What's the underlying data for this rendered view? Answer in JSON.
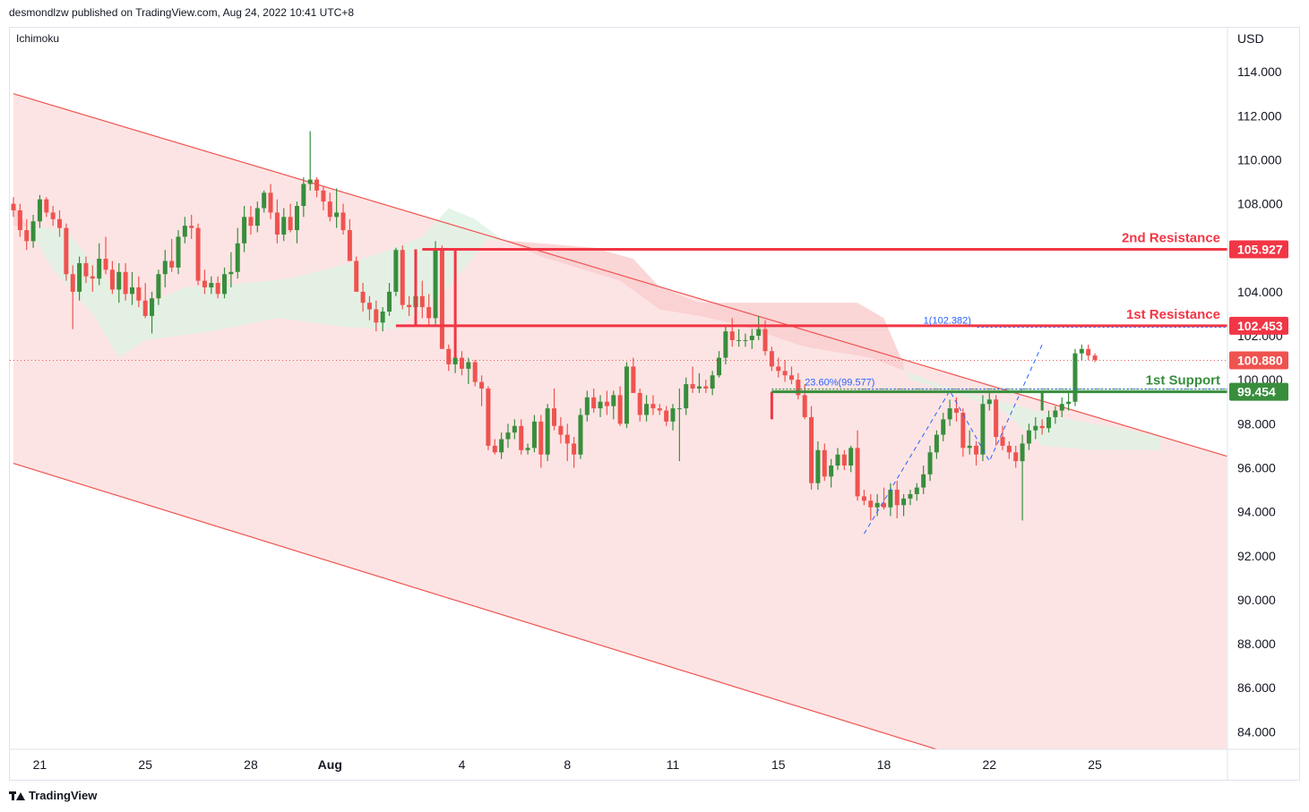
{
  "header": {
    "published_by": "desmondlzw published on TradingView.com, Aug 24, 2022 10:41 UTC+8",
    "indicator": "Ichimoku",
    "currency": "USD",
    "footer_brand": "TradingView"
  },
  "colors": {
    "bull": "#388e3c",
    "bear": "#ef5350",
    "resistance": "#f23645",
    "support": "#388e3c",
    "channel_fill": "#fde1e1",
    "cloud_red": "#f9cfd0",
    "cloud_green": "#e0f2e4",
    "fib": "#2962ff"
  },
  "chart_data": {
    "type": "candlestick",
    "ylim": [
      83.2,
      116.0
    ],
    "y_ticks": [
      84,
      86,
      88,
      90,
      92,
      94,
      96,
      98,
      100,
      102,
      104,
      106,
      108,
      110,
      112,
      114
    ],
    "y_tick_labels": [
      "84.000",
      "86.000",
      "88.000",
      "90.000",
      "92.000",
      "94.000",
      "96.000",
      "98.000",
      "100.000",
      "102.000",
      "104.000",
      "106.000",
      "108.000",
      "110.000",
      "112.000",
      "114.000"
    ],
    "x_ticks": [
      {
        "label": "21",
        "index": 4
      },
      {
        "label": "25",
        "index": 20
      },
      {
        "label": "28",
        "index": 36
      },
      {
        "label": "Aug",
        "index": 48,
        "bold": true
      },
      {
        "label": "4",
        "index": 68
      },
      {
        "label": "8",
        "index": 84
      },
      {
        "label": "11",
        "index": 100
      },
      {
        "label": "15",
        "index": 116
      },
      {
        "label": "18",
        "index": 132
      },
      {
        "label": "22",
        "index": 148
      },
      {
        "label": "25",
        "index": 164
      }
    ],
    "candles": [
      [
        108.0,
        108.3,
        107.4,
        107.7
      ],
      [
        107.7,
        108.0,
        106.5,
        106.8
      ],
      [
        106.8,
        107.3,
        105.9,
        106.3
      ],
      [
        106.3,
        107.5,
        106.0,
        107.2
      ],
      [
        107.2,
        108.4,
        106.9,
        108.2
      ],
      [
        108.2,
        108.3,
        107.4,
        107.6
      ],
      [
        107.6,
        107.9,
        107.0,
        107.3
      ],
      [
        107.3,
        107.7,
        106.5,
        106.9
      ],
      [
        106.9,
        107.1,
        104.5,
        104.8
      ],
      [
        104.8,
        105.2,
        102.3,
        104.0
      ],
      [
        104.0,
        105.6,
        103.6,
        105.3
      ],
      [
        105.3,
        105.6,
        104.4,
        104.7
      ],
      [
        104.7,
        105.2,
        104.0,
        104.6
      ],
      [
        104.6,
        106.2,
        104.3,
        105.5
      ],
      [
        105.5,
        106.5,
        104.8,
        105.0
      ],
      [
        105.0,
        105.4,
        103.9,
        104.1
      ],
      [
        104.1,
        105.3,
        103.5,
        104.9
      ],
      [
        104.9,
        105.3,
        103.6,
        103.9
      ],
      [
        103.9,
        104.9,
        103.4,
        104.2
      ],
      [
        104.2,
        104.7,
        103.3,
        103.6
      ],
      [
        103.6,
        104.4,
        102.8,
        102.9
      ],
      [
        102.9,
        104.0,
        102.1,
        103.7
      ],
      [
        103.7,
        105.0,
        103.4,
        104.8
      ],
      [
        104.8,
        105.9,
        104.2,
        105.4
      ],
      [
        105.4,
        106.4,
        104.9,
        105.1
      ],
      [
        105.1,
        106.8,
        104.8,
        106.5
      ],
      [
        106.5,
        107.4,
        106.2,
        107.0
      ],
      [
        107.0,
        107.5,
        106.4,
        106.9
      ],
      [
        106.9,
        107.1,
        104.3,
        104.5
      ],
      [
        104.5,
        105.0,
        103.9,
        104.2
      ],
      [
        104.2,
        104.7,
        103.9,
        104.4
      ],
      [
        104.4,
        104.7,
        103.7,
        103.9
      ],
      [
        103.9,
        105.1,
        103.7,
        104.8
      ],
      [
        104.8,
        105.8,
        104.2,
        104.9
      ],
      [
        104.9,
        106.9,
        104.6,
        106.2
      ],
      [
        106.2,
        107.9,
        105.8,
        107.4
      ],
      [
        107.4,
        107.9,
        106.6,
        107.0
      ],
      [
        107.0,
        108.1,
        106.7,
        107.8
      ],
      [
        107.8,
        108.6,
        107.6,
        108.5
      ],
      [
        108.5,
        108.9,
        107.3,
        107.6
      ],
      [
        107.6,
        108.2,
        106.2,
        106.6
      ],
      [
        106.6,
        107.8,
        106.3,
        107.4
      ],
      [
        107.4,
        108.0,
        106.7,
        106.8
      ],
      [
        106.8,
        108.1,
        106.2,
        107.9
      ],
      [
        107.9,
        109.2,
        107.4,
        108.9
      ],
      [
        108.9,
        111.3,
        108.6,
        109.1
      ],
      [
        109.1,
        109.2,
        108.3,
        108.6
      ],
      [
        108.6,
        108.8,
        107.7,
        108.1
      ],
      [
        108.1,
        108.5,
        107.2,
        107.4
      ],
      [
        107.4,
        108.7,
        106.9,
        107.6
      ],
      [
        107.6,
        108.0,
        106.6,
        106.8
      ],
      [
        106.8,
        107.3,
        105.5,
        105.4
      ],
      [
        105.4,
        105.6,
        104.0,
        104.0
      ],
      [
        104.0,
        104.4,
        103.1,
        103.5
      ],
      [
        103.5,
        103.8,
        102.7,
        103.2
      ],
      [
        103.2,
        103.6,
        102.2,
        102.6
      ],
      [
        102.6,
        103.3,
        102.2,
        103.1
      ],
      [
        103.1,
        104.4,
        102.9,
        104.0
      ],
      [
        104.0,
        106.0,
        103.8,
        105.9
      ],
      [
        105.9,
        106.1,
        103.2,
        103.4
      ],
      [
        103.4,
        103.8,
        102.9,
        103.3
      ],
      [
        103.3,
        104.1,
        102.8,
        103.8
      ],
      [
        103.8,
        104.5,
        102.8,
        103.3
      ],
      [
        103.3,
        103.9,
        102.5,
        102.8
      ],
      [
        102.8,
        106.3,
        102.5,
        105.9
      ],
      [
        105.9,
        106.1,
        101.5,
        101.4
      ],
      [
        101.4,
        101.6,
        100.4,
        100.7
      ],
      [
        100.7,
        101.2,
        100.3,
        101.0
      ],
      [
        101.0,
        101.3,
        100.2,
        100.5
      ],
      [
        100.5,
        101.0,
        99.8,
        100.8
      ],
      [
        100.8,
        100.9,
        99.7,
        99.9
      ],
      [
        99.9,
        100.2,
        98.8,
        99.6
      ],
      [
        99.6,
        99.7,
        96.8,
        97.0
      ],
      [
        97.0,
        97.3,
        96.6,
        96.7
      ],
      [
        96.7,
        97.6,
        96.4,
        97.3
      ],
      [
        97.3,
        98.0,
        96.9,
        97.6
      ],
      [
        97.6,
        98.2,
        97.3,
        97.9
      ],
      [
        97.9,
        98.2,
        96.6,
        96.8
      ],
      [
        96.8,
        97.1,
        96.6,
        96.9
      ],
      [
        96.9,
        98.4,
        96.7,
        98.1
      ],
      [
        98.1,
        98.4,
        96.0,
        96.6
      ],
      [
        96.6,
        98.9,
        96.3,
        98.7
      ],
      [
        98.7,
        99.6,
        97.7,
        97.9
      ],
      [
        97.9,
        98.3,
        97.1,
        97.5
      ],
      [
        97.5,
        98.0,
        96.3,
        97.1
      ],
      [
        97.1,
        97.4,
        96.0,
        96.6
      ],
      [
        96.6,
        98.7,
        96.4,
        98.4
      ],
      [
        98.4,
        99.5,
        98.1,
        99.2
      ],
      [
        99.2,
        99.6,
        98.5,
        98.7
      ],
      [
        98.7,
        99.3,
        98.3,
        99.0
      ],
      [
        99.0,
        99.5,
        98.4,
        98.8
      ],
      [
        98.8,
        99.5,
        98.2,
        99.3
      ],
      [
        99.3,
        99.7,
        97.9,
        98.0
      ],
      [
        98.0,
        100.8,
        97.8,
        100.6
      ],
      [
        100.6,
        101.0,
        99.4,
        99.4
      ],
      [
        99.4,
        99.6,
        98.1,
        98.4
      ],
      [
        98.4,
        99.3,
        98.1,
        98.9
      ],
      [
        98.9,
        99.3,
        98.4,
        98.7
      ],
      [
        98.7,
        98.9,
        98.4,
        98.6
      ],
      [
        98.6,
        98.8,
        97.9,
        98.1
      ],
      [
        98.1,
        98.9,
        97.7,
        98.7
      ],
      [
        98.7,
        99.6,
        96.3,
        98.7
      ],
      [
        98.7,
        100.1,
        98.4,
        99.8
      ],
      [
        99.8,
        100.6,
        99.4,
        99.6
      ],
      [
        99.6,
        100.3,
        99.4,
        99.7
      ],
      [
        99.7,
        100.0,
        99.4,
        99.6
      ],
      [
        99.6,
        100.4,
        99.3,
        100.2
      ],
      [
        100.2,
        101.3,
        100.1,
        101.0
      ],
      [
        101.0,
        102.5,
        100.7,
        102.2
      ],
      [
        102.2,
        102.8,
        101.5,
        101.8
      ],
      [
        101.8,
        102.3,
        101.5,
        101.8
      ],
      [
        101.8,
        102.1,
        101.5,
        101.8
      ],
      [
        101.8,
        102.3,
        101.4,
        102.0
      ],
      [
        102.0,
        102.9,
        101.8,
        102.3
      ],
      [
        102.3,
        102.7,
        101.1,
        101.3
      ],
      [
        101.3,
        101.5,
        100.4,
        100.6
      ],
      [
        100.6,
        101.0,
        100.1,
        100.4
      ],
      [
        100.4,
        100.9,
        99.9,
        100.2
      ],
      [
        100.2,
        100.6,
        99.8,
        100.0
      ],
      [
        100.0,
        100.3,
        99.1,
        99.3
      ],
      [
        99.3,
        99.8,
        98.2,
        98.3
      ],
      [
        98.3,
        98.8,
        95.0,
        95.3
      ],
      [
        95.3,
        97.2,
        95.0,
        96.8
      ],
      [
        96.8,
        97.1,
        95.4,
        95.6
      ],
      [
        95.6,
        96.4,
        95.1,
        96.1
      ],
      [
        96.1,
        96.9,
        95.9,
        96.6
      ],
      [
        96.6,
        96.8,
        95.9,
        96.1
      ],
      [
        96.1,
        97.0,
        95.8,
        96.9
      ],
      [
        96.9,
        97.7,
        94.5,
        94.7
      ],
      [
        94.7,
        95.0,
        94.3,
        94.5
      ],
      [
        94.5,
        94.8,
        93.6,
        94.2
      ],
      [
        94.2,
        94.8,
        93.8,
        94.4
      ],
      [
        94.4,
        95.1,
        94.1,
        94.2
      ],
      [
        94.2,
        95.3,
        93.8,
        95.0
      ],
      [
        95.0,
        95.4,
        93.7,
        94.3
      ],
      [
        94.3,
        94.8,
        93.8,
        94.6
      ],
      [
        94.6,
        95.0,
        94.3,
        94.8
      ],
      [
        94.8,
        95.3,
        94.5,
        95.1
      ],
      [
        95.1,
        96.1,
        94.8,
        95.7
      ],
      [
        95.7,
        97.0,
        95.4,
        96.7
      ],
      [
        96.7,
        97.7,
        96.4,
        97.5
      ],
      [
        97.5,
        98.5,
        97.2,
        98.2
      ],
      [
        98.2,
        99.1,
        97.9,
        98.7
      ],
      [
        98.7,
        99.2,
        98.1,
        98.5
      ],
      [
        98.5,
        98.7,
        96.5,
        96.9
      ],
      [
        96.9,
        97.7,
        96.6,
        97.0
      ],
      [
        97.0,
        97.2,
        96.1,
        96.6
      ],
      [
        96.6,
        99.3,
        96.3,
        98.9
      ],
      [
        98.9,
        99.5,
        98.6,
        99.1
      ],
      [
        99.1,
        99.3,
        97.0,
        97.4
      ],
      [
        97.4,
        97.9,
        96.8,
        97.0
      ],
      [
        97.0,
        97.2,
        96.4,
        96.7
      ],
      [
        96.7,
        97.0,
        96.0,
        96.3
      ],
      [
        96.3,
        97.5,
        93.6,
        97.1
      ],
      [
        97.1,
        98.0,
        96.8,
        97.7
      ],
      [
        97.7,
        98.3,
        97.3,
        97.9
      ],
      [
        97.9,
        98.2,
        97.5,
        97.8
      ],
      [
        97.8,
        98.6,
        97.6,
        98.3
      ],
      [
        98.3,
        98.8,
        98.0,
        98.6
      ],
      [
        98.6,
        99.2,
        98.3,
        98.9
      ],
      [
        98.9,
        99.5,
        98.6,
        99.0
      ],
      [
        99.0,
        101.4,
        98.8,
        101.2
      ],
      [
        101.2,
        101.6,
        100.9,
        101.4
      ],
      [
        101.4,
        101.6,
        100.9,
        101.1
      ],
      [
        101.1,
        101.2,
        100.8,
        100.9
      ]
    ],
    "ichimoku_cloud": {
      "span_a": [
        {
          "i": 0,
          "v": 107.0
        },
        {
          "i": 8,
          "v": 106.8
        },
        {
          "i": 14,
          "v": 104.6
        },
        {
          "i": 20,
          "v": 103.4
        },
        {
          "i": 26,
          "v": 104.2
        },
        {
          "i": 32,
          "v": 104.3
        },
        {
          "i": 42,
          "v": 104.6
        },
        {
          "i": 52,
          "v": 105.4
        },
        {
          "i": 58,
          "v": 106.0
        },
        {
          "i": 62,
          "v": 106.5
        },
        {
          "i": 66,
          "v": 107.8
        },
        {
          "i": 70,
          "v": 107.3
        },
        {
          "i": 74,
          "v": 106.4
        },
        {
          "i": 80,
          "v": 105.6
        },
        {
          "i": 92,
          "v": 104.5
        },
        {
          "i": 98,
          "v": 103.2
        },
        {
          "i": 104,
          "v": 102.9
        },
        {
          "i": 110,
          "v": 102.5
        },
        {
          "i": 120,
          "v": 101.5
        },
        {
          "i": 130,
          "v": 101.0
        },
        {
          "i": 142,
          "v": 99.6
        },
        {
          "i": 150,
          "v": 99.0
        },
        {
          "i": 160,
          "v": 98.2
        },
        {
          "i": 168,
          "v": 97.8
        },
        {
          "i": 174,
          "v": 97.4
        }
      ],
      "span_b": [
        {
          "i": 0,
          "v": 108.0
        },
        {
          "i": 6,
          "v": 105.0
        },
        {
          "i": 12,
          "v": 103.0
        },
        {
          "i": 16,
          "v": 101.0
        },
        {
          "i": 20,
          "v": 101.8
        },
        {
          "i": 30,
          "v": 102.2
        },
        {
          "i": 40,
          "v": 102.8
        },
        {
          "i": 50,
          "v": 102.4
        },
        {
          "i": 58,
          "v": 102.3
        },
        {
          "i": 66,
          "v": 104.2
        },
        {
          "i": 72,
          "v": 106.4
        },
        {
          "i": 80,
          "v": 106.2
        },
        {
          "i": 88,
          "v": 106.0
        },
        {
          "i": 94,
          "v": 105.5
        },
        {
          "i": 98,
          "v": 104.2
        },
        {
          "i": 104,
          "v": 103.5
        },
        {
          "i": 112,
          "v": 103.5
        },
        {
          "i": 120,
          "v": 103.5
        },
        {
          "i": 128,
          "v": 103.5
        },
        {
          "i": 132,
          "v": 102.8
        },
        {
          "i": 136,
          "v": 100.0
        },
        {
          "i": 142,
          "v": 99.5
        },
        {
          "i": 150,
          "v": 98.6
        },
        {
          "i": 156,
          "v": 97.0
        },
        {
          "i": 164,
          "v": 96.8
        },
        {
          "i": 174,
          "v": 96.8
        }
      ]
    },
    "channel": {
      "upper": [
        {
          "i": 0,
          "v": 113.0
        },
        {
          "i": 172,
          "v": 97.6
        }
      ],
      "lower": [
        {
          "i": 0,
          "v": 96.2
        },
        {
          "i": 140,
          "v": 83.2
        }
      ]
    },
    "levels": [
      {
        "name": "2nd Resistance",
        "value": 105.927,
        "label": "105.927",
        "start_index": 62
      },
      {
        "name": "1st Resistance",
        "value": 102.453,
        "label": "102.453",
        "start_index": 58
      },
      {
        "name": "1st Support",
        "value": 99.454,
        "label": "99.454",
        "start_index": 115
      }
    ],
    "last_price": {
      "value": 100.88,
      "label": "100.880"
    },
    "fib_labels": [
      {
        "text": "1(102.382)",
        "value": 102.382,
        "index": 138
      },
      {
        "text": "23.60%(99.577)",
        "value": 99.577,
        "index": 120
      }
    ],
    "fib_points": [
      {
        "i": 129,
        "v": 93.0
      },
      {
        "i": 142,
        "v": 99.5
      },
      {
        "i": 148,
        "v": 96.3
      },
      {
        "i": 156,
        "v": 101.6
      }
    ],
    "v_segments": [
      {
        "i": 61,
        "from": 102.453,
        "to": 105.927,
        "color": "resistance"
      },
      {
        "i": 67,
        "from": 101.0,
        "to": 105.927,
        "color": "resistance"
      },
      {
        "i": 115,
        "from": 98.2,
        "to": 99.454,
        "color": "resistance"
      },
      {
        "i": 156,
        "from": 98.6,
        "to": 99.454,
        "color": "support"
      }
    ]
  }
}
